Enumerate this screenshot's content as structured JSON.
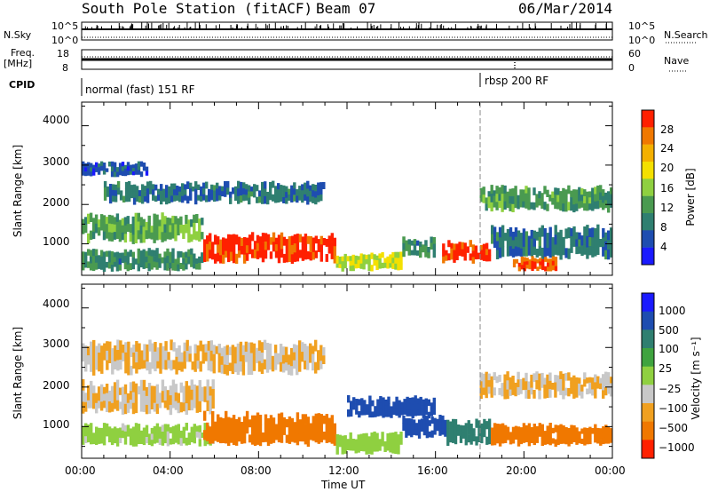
{
  "header": {
    "title": "South Pole Station (fitACF)",
    "beam": "Beam 07",
    "date": "06/Mar/2014"
  },
  "top_panels": {
    "nsky_label": "N.Sky",
    "nsearch_label": "N.Search",
    "noise_ticks": [
      "10^5",
      "10^0"
    ],
    "freq_label_line1": "Freq.",
    "freq_label_line2": "[MHz]",
    "freq_ticks": [
      "18",
      "8"
    ],
    "nave_ticks": [
      "60",
      "0"
    ],
    "nave_label": "Nave",
    "cpid_label": "CPID",
    "cpid_segments": [
      {
        "label": "normal (fast) 151 RF",
        "start_hour": 0,
        "end_hour": 18
      },
      {
        "label": "rbsp 200 RF",
        "start_hour": 18,
        "end_hour": 24
      }
    ]
  },
  "colors": {
    "power_scale": [
      "#1a1aff",
      "#1e4db0",
      "#2f7f70",
      "#4a9a50",
      "#8fd040",
      "#f4e000",
      "#f4b000",
      "#f07800",
      "#ff2000"
    ],
    "velocity_scale": [
      "#1a1aff",
      "#1e4db0",
      "#2f7f70",
      "#3fa33f",
      "#8fd040",
      "#c8c8c8",
      "#f0a020",
      "#f07800",
      "#ff2000"
    ]
  },
  "chart_data": [
    {
      "type": "heatmap",
      "title": "",
      "ylabel": "Slant Range [km]",
      "xlabel": "",
      "x_ticks": [
        "00:00",
        "04:00",
        "08:00",
        "12:00",
        "16:00",
        "20:00",
        "00:00"
      ],
      "y_ticks": [
        "1000",
        "2000",
        "3000",
        "4000"
      ],
      "xlim_hours": [
        0,
        24
      ],
      "ylim_km": [
        200,
        4600
      ],
      "colorbar_label": "Power [dB]",
      "colorbar_ticks": [
        "28",
        "24",
        "20",
        "16",
        "12",
        "8",
        "4"
      ],
      "colorbar_range": [
        0,
        32
      ],
      "regions": [
        {
          "t0": 0.0,
          "t1": 5.5,
          "r0": 300,
          "r1": 900,
          "value": 10
        },
        {
          "t0": 0.0,
          "t1": 5.5,
          "r0": 1000,
          "r1": 1800,
          "value": 13
        },
        {
          "t0": 0.0,
          "t1": 3.0,
          "r0": 2700,
          "r1": 3100,
          "value": 6
        },
        {
          "t0": 1.0,
          "t1": 11.0,
          "r0": 2000,
          "r1": 2600,
          "value": 8
        },
        {
          "t0": 5.5,
          "t1": 11.5,
          "r0": 500,
          "r1": 1300,
          "value": 30
        },
        {
          "t0": 11.5,
          "t1": 14.5,
          "r0": 300,
          "r1": 800,
          "value": 18
        },
        {
          "t0": 14.5,
          "t1": 16.0,
          "r0": 600,
          "r1": 1200,
          "value": 10
        },
        {
          "t0": 16.3,
          "t1": 18.5,
          "r0": 500,
          "r1": 1100,
          "value": 30
        },
        {
          "t0": 18.5,
          "t1": 24.0,
          "r0": 600,
          "r1": 1500,
          "value": 8
        },
        {
          "t0": 18.0,
          "t1": 24.0,
          "r0": 1800,
          "r1": 2500,
          "value": 12
        },
        {
          "t0": 19.5,
          "t1": 21.5,
          "r0": 300,
          "r1": 700,
          "value": 28
        }
      ]
    },
    {
      "type": "heatmap",
      "title": "",
      "ylabel": "Slant Range [km]",
      "xlabel": "Time UT",
      "x_ticks": [
        "00:00",
        "04:00",
        "08:00",
        "12:00",
        "16:00",
        "20:00",
        "00:00"
      ],
      "y_ticks": [
        "1000",
        "2000",
        "3000",
        "4000"
      ],
      "xlim_hours": [
        0,
        24
      ],
      "ylim_km": [
        200,
        4600
      ],
      "colorbar_label": "Velocity [m s⁻¹]",
      "colorbar_ticks": [
        "1000",
        "500",
        "100",
        "25",
        "−25",
        "−100",
        "−500",
        "−1000"
      ],
      "regions": [
        {
          "t0": 0.0,
          "t1": 6.0,
          "r0": 1300,
          "r1": 2200,
          "value": -25
        },
        {
          "t0": 0.0,
          "t1": 6.0,
          "r0": 500,
          "r1": 1100,
          "value": 50
        },
        {
          "t0": 0.0,
          "t1": 11.0,
          "r0": 2300,
          "r1": 3200,
          "value": -25
        },
        {
          "t0": 5.5,
          "t1": 11.5,
          "r0": 500,
          "r1": 1400,
          "value": -300
        },
        {
          "t0": 11.5,
          "t1": 14.5,
          "r0": 300,
          "r1": 900,
          "value": 60
        },
        {
          "t0": 14.5,
          "t1": 16.5,
          "r0": 700,
          "r1": 1300,
          "value": 800
        },
        {
          "t0": 16.5,
          "t1": 18.5,
          "r0": 500,
          "r1": 1200,
          "value": 300
        },
        {
          "t0": 18.5,
          "t1": 24.0,
          "r0": 500,
          "r1": 1100,
          "value": -300
        },
        {
          "t0": 18.0,
          "t1": 24.0,
          "r0": 1700,
          "r1": 2400,
          "value": -25
        },
        {
          "t0": 12.0,
          "t1": 16.0,
          "r0": 1200,
          "r1": 1800,
          "value": 600
        }
      ]
    }
  ]
}
